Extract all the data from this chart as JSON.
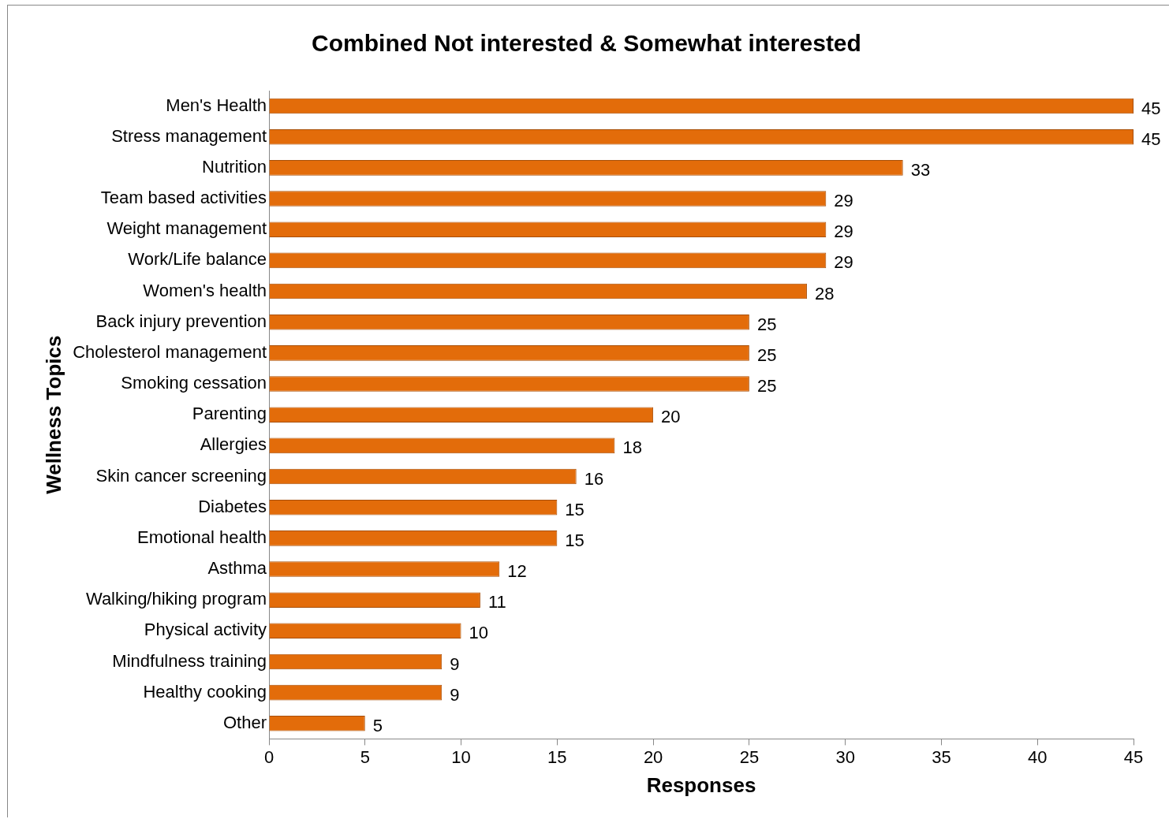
{
  "chart_data": {
    "type": "bar",
    "orientation": "horizontal",
    "title": "Combined Not interested & Somewhat interested",
    "xlabel": "Responses",
    "ylabel": "Wellness Topics",
    "categories": [
      "Men's Health",
      "Stress management",
      "Nutrition",
      "Team based activities",
      "Weight management",
      "Work/Life balance",
      "Women's health",
      "Back injury prevention",
      "Cholesterol management",
      "Smoking cessation",
      "Parenting",
      "Allergies",
      "Skin cancer screening",
      "Diabetes",
      "Emotional health",
      "Asthma",
      "Walking/hiking program",
      "Physical activity",
      "Mindfulness training",
      "Healthy cooking",
      "Other"
    ],
    "values": [
      45,
      45,
      33,
      29,
      29,
      29,
      28,
      25,
      25,
      25,
      20,
      18,
      16,
      15,
      15,
      12,
      11,
      10,
      9,
      9,
      5
    ],
    "color": "#e36c0a",
    "xlim": [
      0,
      45
    ],
    "xticks": [
      0,
      5,
      10,
      15,
      20,
      25,
      30,
      35,
      40,
      45
    ],
    "grid": false,
    "data_labels": true,
    "legend": false
  }
}
